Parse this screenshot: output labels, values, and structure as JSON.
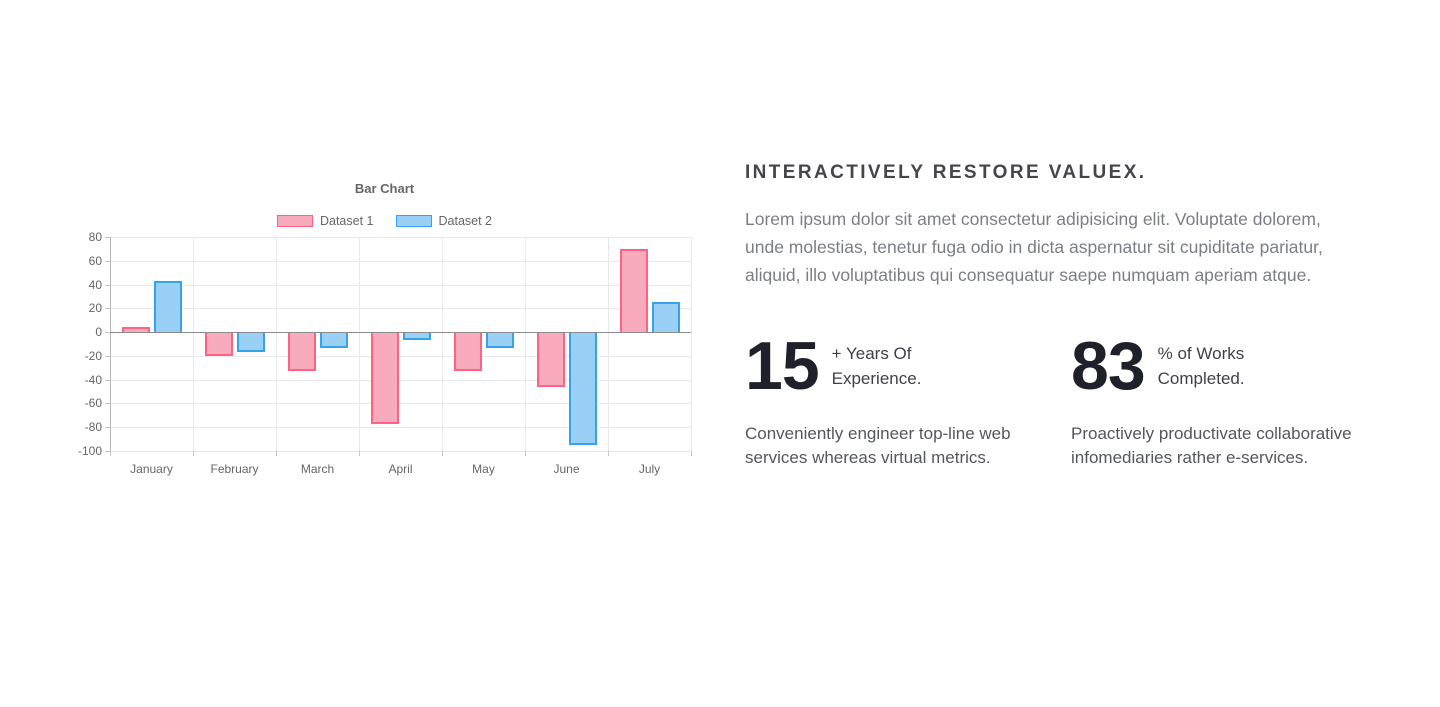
{
  "chart": {
    "title": "Bar Chart"
  },
  "chart_data": {
    "type": "bar",
    "title": "Bar Chart",
    "categories": [
      "January",
      "February",
      "March",
      "April",
      "May",
      "June",
      "July"
    ],
    "series": [
      {
        "name": "Dataset 1",
        "values": [
          4,
          -20,
          -33,
          -77,
          -33,
          -46,
          70
        ],
        "fill": "#f9abbe",
        "border": "#ff6384"
      },
      {
        "name": "Dataset 2",
        "values": [
          43,
          -17,
          -13,
          -7,
          -13,
          -95,
          25
        ],
        "fill": "#9ad0f5",
        "border": "#36a2eb"
      }
    ],
    "ylim": [
      -100,
      80
    ],
    "ytick_step": 20,
    "grid": true,
    "legend_position": "top",
    "colors": {
      "grid_line": "#e9e9e9",
      "zero_line": "#8d8d8d",
      "axis_text": "#666666"
    }
  },
  "content": {
    "heading": "INTERACTIVELY RESTORE VALUEX.",
    "intro": "Lorem ipsum dolor sit amet consectetur adipisicing elit. Voluptate dolorem, unde molestias, tenetur fuga odio in dicta aspernatur sit cupiditate pariatur, aliquid, illo voluptatibus qui consequatur saepe numquam aperiam atque.",
    "stats": [
      {
        "value": "15",
        "label_line1": "+ Years Of",
        "label_line2": "Experience.",
        "description": "Conveniently engineer top-line web services whereas virtual metrics."
      },
      {
        "value": "83",
        "label_line1": "% of Works",
        "label_line2": "Completed.",
        "description": "Proactively productivate collaborative infomediaries rather e-services."
      }
    ]
  }
}
